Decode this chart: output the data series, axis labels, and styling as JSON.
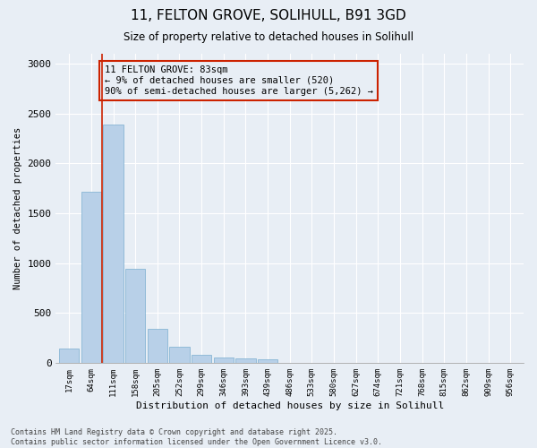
{
  "title": "11, FELTON GROVE, SOLIHULL, B91 3GD",
  "subtitle": "Size of property relative to detached houses in Solihull",
  "xlabel": "Distribution of detached houses by size in Solihull",
  "ylabel": "Number of detached properties",
  "categories": [
    "17sqm",
    "64sqm",
    "111sqm",
    "158sqm",
    "205sqm",
    "252sqm",
    "299sqm",
    "346sqm",
    "393sqm",
    "439sqm",
    "486sqm",
    "533sqm",
    "580sqm",
    "627sqm",
    "674sqm",
    "721sqm",
    "768sqm",
    "815sqm",
    "862sqm",
    "909sqm",
    "956sqm"
  ],
  "values": [
    140,
    1720,
    2390,
    940,
    340,
    160,
    80,
    50,
    45,
    30,
    0,
    0,
    0,
    0,
    0,
    0,
    0,
    0,
    0,
    0,
    0
  ],
  "bar_color": "#b8d0e8",
  "bar_edge_color": "#7aaecf",
  "vline_x": 1.5,
  "vline_color": "#cc2200",
  "annotation_text": "11 FELTON GROVE: 83sqm\n← 9% of detached houses are smaller (520)\n90% of semi-detached houses are larger (5,262) →",
  "annotation_box_color": "#cc2200",
  "ylim": [
    0,
    3100
  ],
  "yticks": [
    0,
    500,
    1000,
    1500,
    2000,
    2500,
    3000
  ],
  "background_color": "#e8eef5",
  "grid_color": "#ffffff",
  "footer": "Contains HM Land Registry data © Crown copyright and database right 2025.\nContains public sector information licensed under the Open Government Licence v3.0."
}
